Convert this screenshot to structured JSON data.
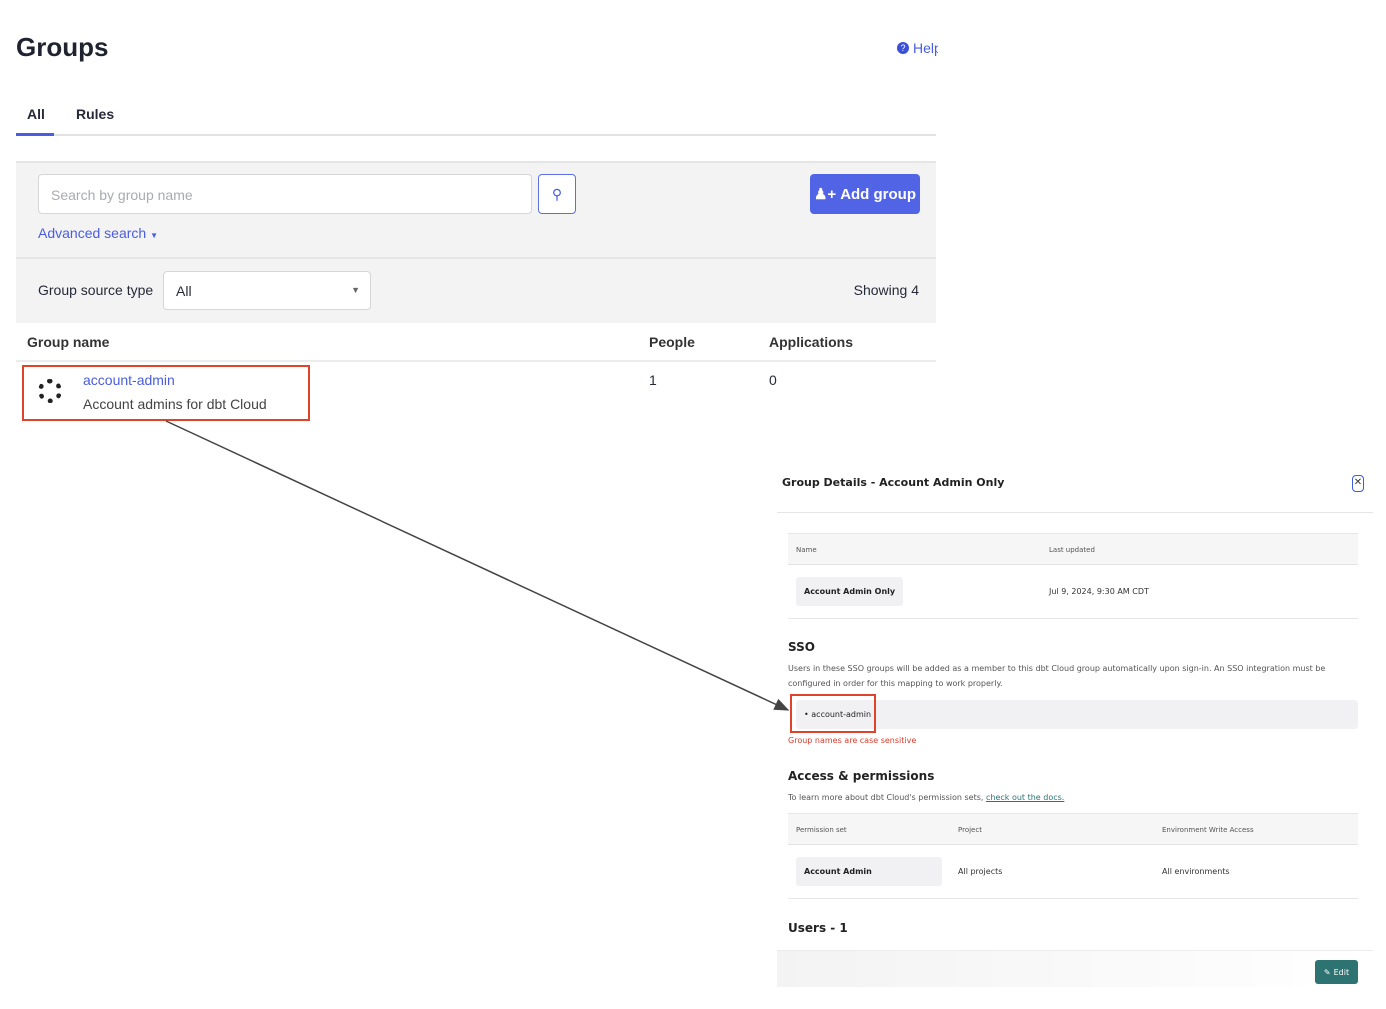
{
  "page": {
    "title": "Groups",
    "help_label": "Help"
  },
  "tabs": [
    {
      "label": "All",
      "active": true
    },
    {
      "label": "Rules",
      "active": false
    }
  ],
  "filters": {
    "search_placeholder": "Search by group name",
    "add_group_label": "Add group",
    "advanced_search_label": "Advanced search",
    "group_source_type_label": "Group source type",
    "group_source_type_value": "All",
    "showing_label": "Showing 4"
  },
  "table": {
    "headers": [
      "Group name",
      "People",
      "Applications"
    ],
    "rows": [
      {
        "name": "account-admin",
        "description": "Account admins for dbt Cloud",
        "people": "1",
        "applications": "0"
      }
    ]
  },
  "details": {
    "title": "Group Details - Account Admin Only",
    "name_header": "Name",
    "last_updated_header": "Last updated",
    "name": "Account Admin Only",
    "last_updated": "Jul 9, 2024, 9:30 AM CDT",
    "sso_title": "SSO",
    "sso_desc": "Users in these SSO groups will be added as a member to this dbt Cloud group automatically upon sign-in. An SSO integration must be configured in order for this mapping to work properly.",
    "sso_group": "• account-admin",
    "sso_warning": "Group names are case sensitive",
    "access_title": "Access & permissions",
    "access_desc": "To learn more about dbt Cloud's permission sets, ",
    "access_link": "check out the docs.",
    "perm_headers": [
      "Permission set",
      "Project",
      "Environment Write Access"
    ],
    "perm_row": [
      "Account Admin",
      "All projects",
      "All environments"
    ],
    "users_title": "Users - 1",
    "edit_label": "Edit"
  },
  "colors": {
    "accent": "#5164e6",
    "highlight": "#e0432c",
    "edit": "#2c7372",
    "warning": "#d93a2b"
  }
}
